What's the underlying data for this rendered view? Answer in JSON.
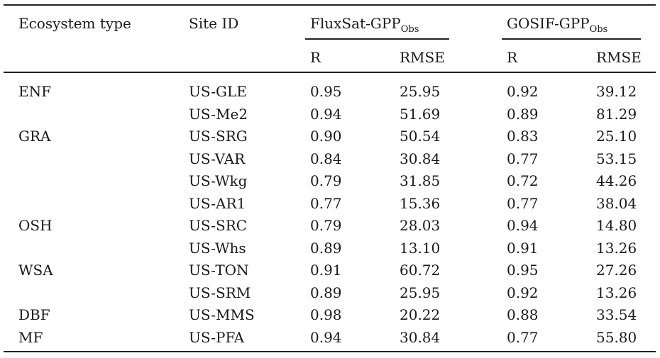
{
  "headers": {
    "ecosystem_type": "Ecosystem type",
    "site_id": "Site ID",
    "fluxsat_main": "FluxSat-GPP",
    "fluxsat_sub": "Obs",
    "gosif_main": "GOSIF-GPP",
    "gosif_sub": "Obs",
    "r": "R",
    "rmse": "RMSE"
  },
  "rows": [
    {
      "eco": "ENF",
      "site": "US-GLE",
      "f_r": "0.95",
      "f_rmse": "25.95",
      "g_r": "0.92",
      "g_rmse": "39.12"
    },
    {
      "eco": "",
      "site": "US-Me2",
      "f_r": "0.94",
      "f_rmse": "51.69",
      "g_r": "0.89",
      "g_rmse": "81.29"
    },
    {
      "eco": "GRA",
      "site": "US-SRG",
      "f_r": "0.90",
      "f_rmse": "50.54",
      "g_r": "0.83",
      "g_rmse": "25.10"
    },
    {
      "eco": "",
      "site": "US-VAR",
      "f_r": "0.84",
      "f_rmse": "30.84",
      "g_r": "0.77",
      "g_rmse": "53.15"
    },
    {
      "eco": "",
      "site": "US-Wkg",
      "f_r": "0.79",
      "f_rmse": "31.85",
      "g_r": "0.72",
      "g_rmse": "44.26"
    },
    {
      "eco": "",
      "site": "US-AR1",
      "f_r": "0.77",
      "f_rmse": "15.36",
      "g_r": "0.77",
      "g_rmse": "38.04"
    },
    {
      "eco": "OSH",
      "site": "US-SRC",
      "f_r": "0.79",
      "f_rmse": "28.03",
      "g_r": "0.94",
      "g_rmse": "14.80"
    },
    {
      "eco": "",
      "site": "US-Whs",
      "f_r": "0.89",
      "f_rmse": "13.10",
      "g_r": "0.91",
      "g_rmse": "13.26"
    },
    {
      "eco": "WSA",
      "site": "US-TON",
      "f_r": "0.91",
      "f_rmse": "60.72",
      "g_r": "0.95",
      "g_rmse": "27.26"
    },
    {
      "eco": "",
      "site": "US-SRM",
      "f_r": "0.89",
      "f_rmse": "25.95",
      "g_r": "0.92",
      "g_rmse": "13.26"
    },
    {
      "eco": "DBF",
      "site": "US-MMS",
      "f_r": "0.98",
      "f_rmse": "20.22",
      "g_r": "0.88",
      "g_rmse": "33.54"
    },
    {
      "eco": "MF",
      "site": "US-PFA",
      "f_r": "0.94",
      "f_rmse": "30.84",
      "g_r": "0.77",
      "g_rmse": "55.80"
    }
  ]
}
